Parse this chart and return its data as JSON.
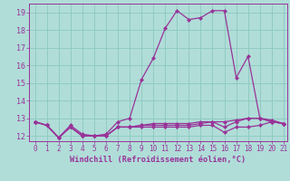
{
  "xlabel": "Windchill (Refroidissement éolien,°C)",
  "background_color": "#b0ddd8",
  "grid_color": "#8cc8c0",
  "line_color": "#993399",
  "xlim": [
    -0.5,
    21.3
  ],
  "ylim": [
    11.7,
    19.5
  ],
  "xticks": [
    0,
    1,
    2,
    3,
    4,
    5,
    6,
    7,
    8,
    9,
    10,
    11,
    12,
    13,
    14,
    15,
    16,
    17,
    18,
    19,
    20,
    21
  ],
  "yticks": [
    12,
    13,
    14,
    15,
    16,
    17,
    18,
    19
  ],
  "series": [
    [
      12.8,
      12.6,
      11.9,
      12.6,
      12.1,
      12.0,
      12.1,
      12.8,
      13.0,
      15.2,
      16.4,
      18.1,
      19.1,
      18.6,
      18.7,
      19.1,
      19.1,
      15.3,
      16.5,
      13.0,
      12.8,
      12.7
    ],
    [
      12.8,
      12.6,
      11.9,
      12.5,
      12.0,
      12.0,
      12.0,
      12.5,
      12.5,
      12.6,
      12.7,
      12.7,
      12.7,
      12.7,
      12.8,
      12.8,
      12.8,
      12.9,
      13.0,
      13.0,
      12.9,
      12.7
    ],
    [
      12.8,
      12.6,
      11.9,
      12.5,
      12.0,
      12.0,
      12.0,
      12.5,
      12.5,
      12.6,
      12.6,
      12.6,
      12.6,
      12.6,
      12.7,
      12.8,
      12.5,
      12.8,
      13.0,
      13.0,
      12.8,
      12.7
    ],
    [
      12.8,
      12.6,
      11.9,
      12.5,
      12.0,
      12.0,
      12.0,
      12.5,
      12.5,
      12.5,
      12.5,
      12.5,
      12.5,
      12.5,
      12.6,
      12.6,
      12.2,
      12.5,
      12.5,
      12.6,
      12.8,
      12.7
    ]
  ]
}
